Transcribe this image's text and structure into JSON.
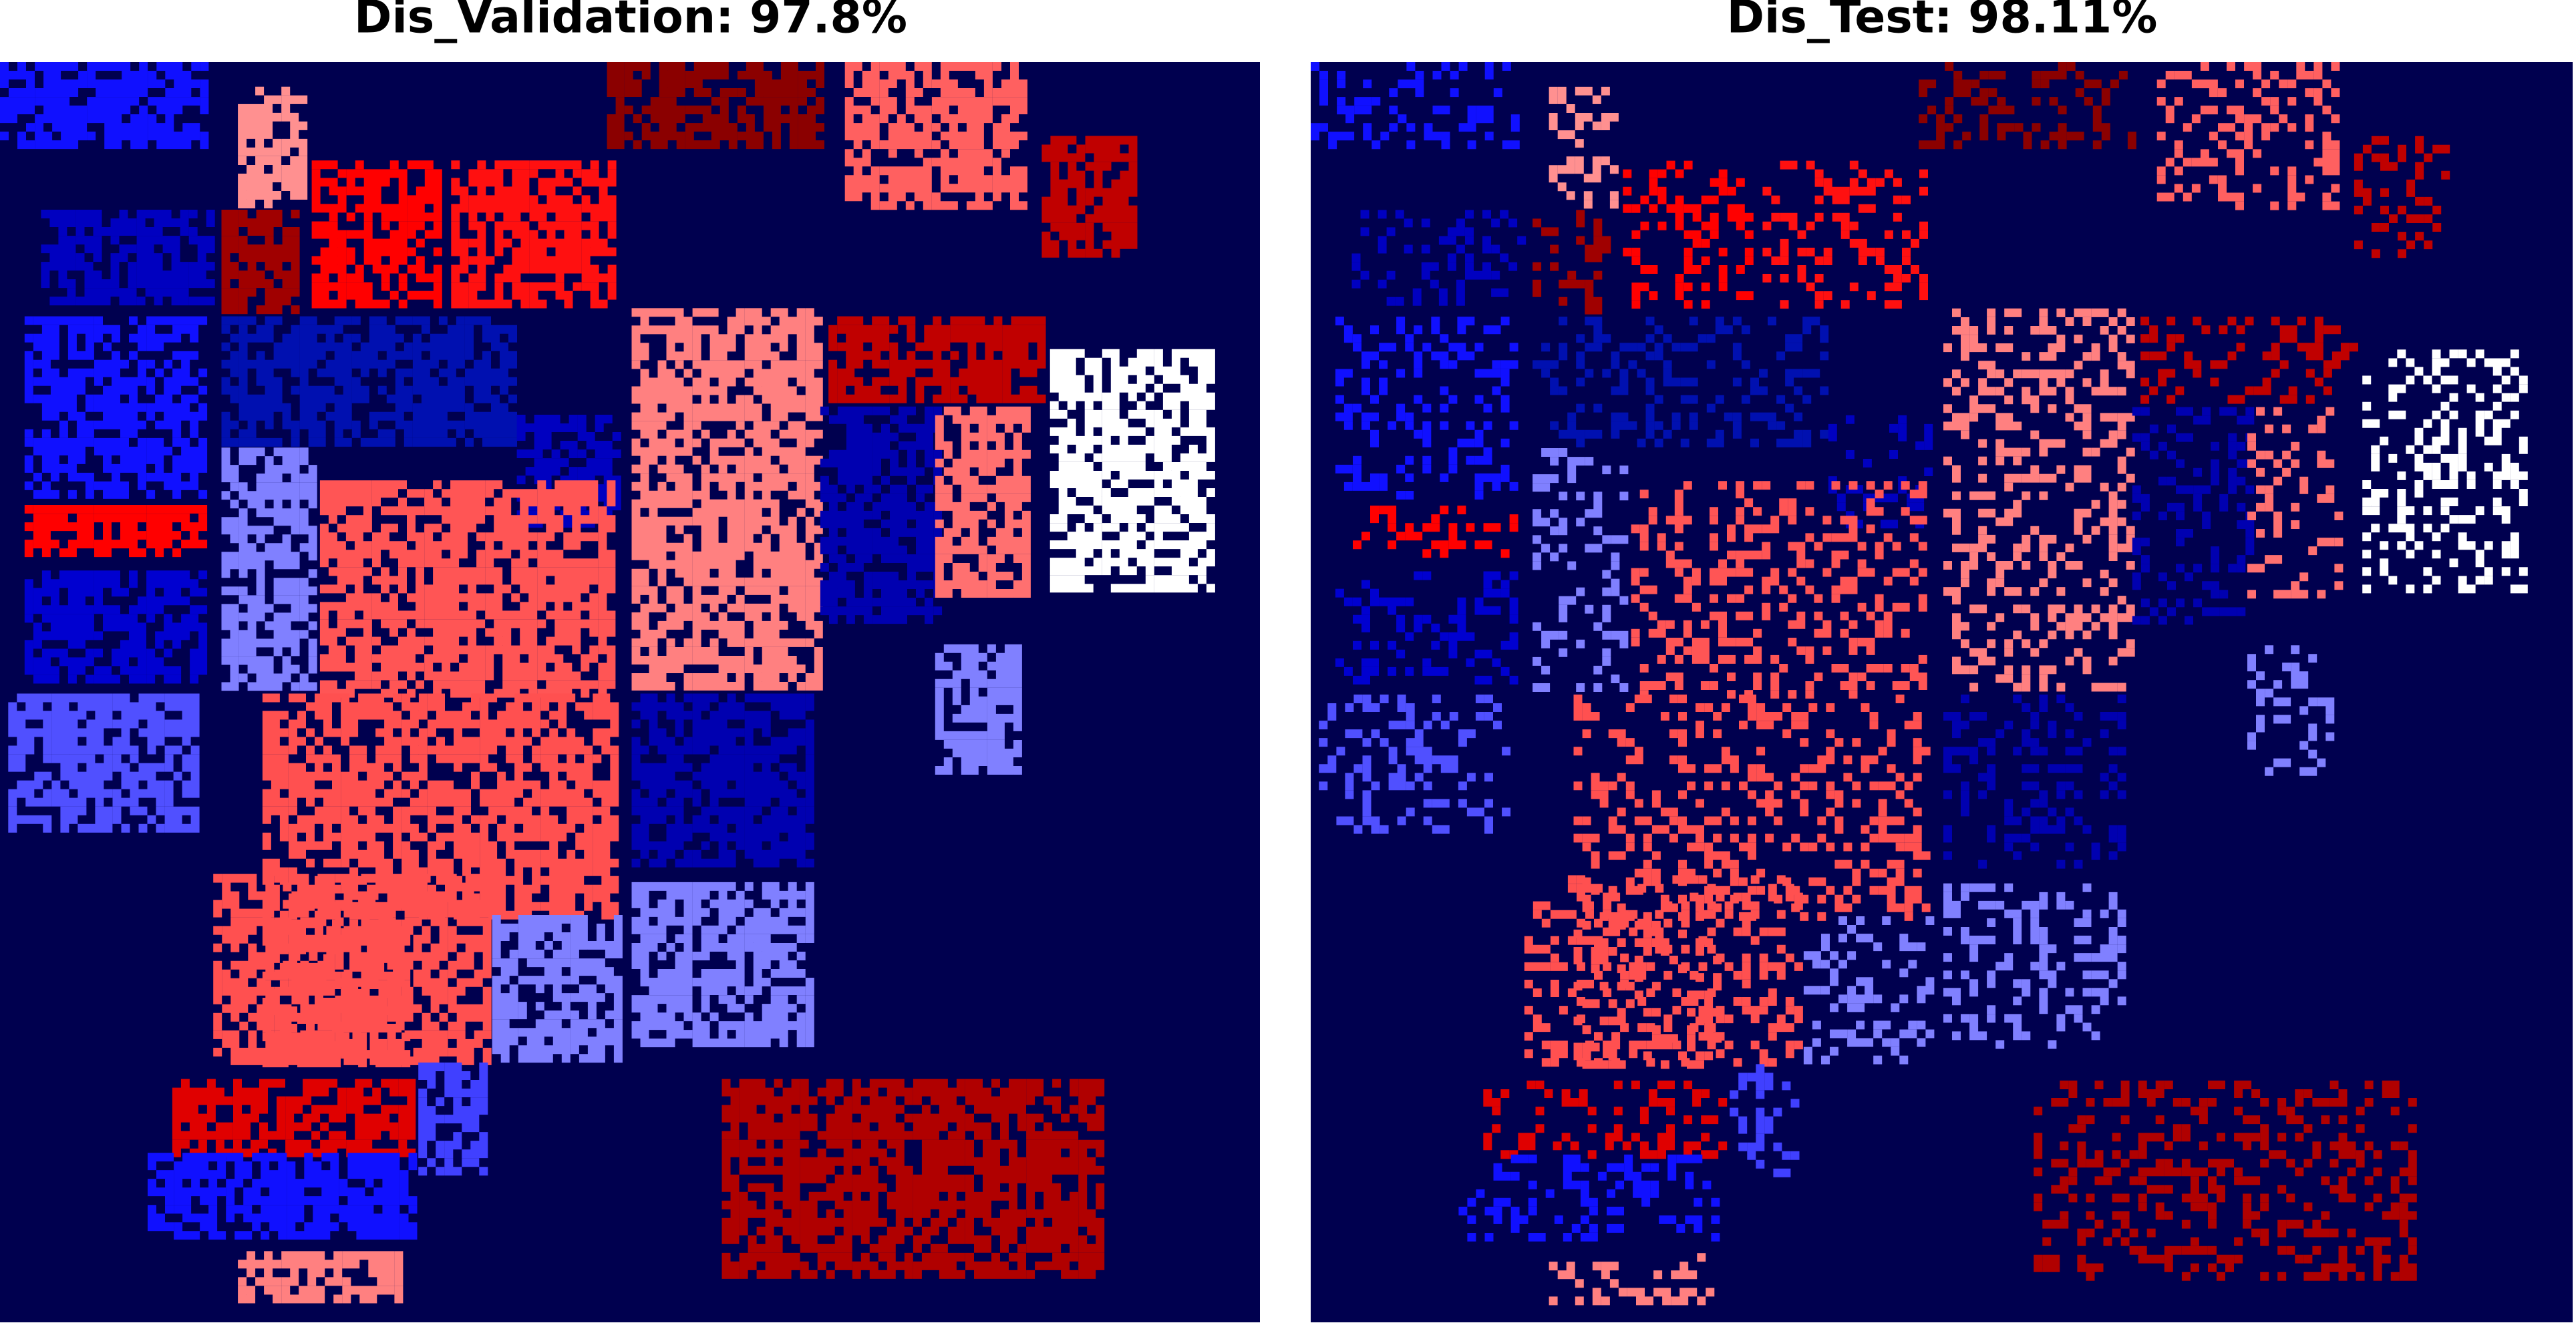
{
  "panels": [
    {
      "title": "Dis_Validation: 97.8%"
    },
    {
      "title": "Dis_Test: 98.11%"
    }
  ]
}
